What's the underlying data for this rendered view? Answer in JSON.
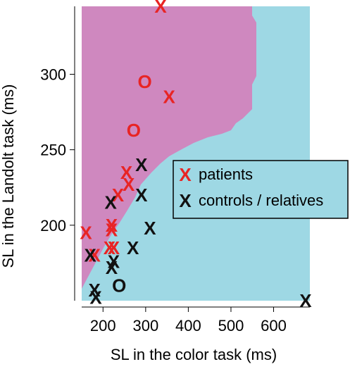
{
  "chart_data": {
    "type": "scatter",
    "xlabel": "SL in the color task (ms)",
    "ylabel": "SL in the Landolt task (ms)",
    "xlim": [
      150,
      685
    ],
    "ylim": [
      150,
      345
    ],
    "xticks": [
      "200",
      "300",
      "400",
      "500",
      "600"
    ],
    "yticks": [
      "200",
      "250",
      "300"
    ],
    "regions": [
      {
        "name": "patients-region",
        "color": "#cf88bf"
      },
      {
        "name": "controls-region",
        "color": "#9ed8e4"
      }
    ],
    "legend": {
      "entries": [
        {
          "symbol": "X",
          "label": "patients",
          "color": "#e82424"
        },
        {
          "symbol": "X",
          "label": "controls / relatives",
          "color": "#111111"
        }
      ]
    },
    "series": [
      {
        "name": "patients",
        "marker": "X",
        "color": "#e82424",
        "points": [
          {
            "x": 335,
            "y": 345
          },
          {
            "x": 355,
            "y": 285
          },
          {
            "x": 160,
            "y": 195
          },
          {
            "x": 180,
            "y": 180
          },
          {
            "x": 215,
            "y": 185
          },
          {
            "x": 220,
            "y": 200
          },
          {
            "x": 220,
            "y": 197
          },
          {
            "x": 225,
            "y": 185
          },
          {
            "x": 235,
            "y": 220
          },
          {
            "x": 255,
            "y": 235
          },
          {
            "x": 260,
            "y": 227
          }
        ]
      },
      {
        "name": "patients-o",
        "marker": "O",
        "color": "#e82424",
        "points": [
          {
            "x": 298,
            "y": 295
          },
          {
            "x": 272,
            "y": 263
          }
        ]
      },
      {
        "name": "controls / relatives",
        "marker": "X",
        "color": "#111111",
        "points": [
          {
            "x": 170,
            "y": 180
          },
          {
            "x": 180,
            "y": 157
          },
          {
            "x": 183,
            "y": 152
          },
          {
            "x": 218,
            "y": 215
          },
          {
            "x": 220,
            "y": 172
          },
          {
            "x": 225,
            "y": 176
          },
          {
            "x": 270,
            "y": 185
          },
          {
            "x": 290,
            "y": 240
          },
          {
            "x": 290,
            "y": 220
          },
          {
            "x": 310,
            "y": 198
          },
          {
            "x": 675,
            "y": 150
          }
        ]
      },
      {
        "name": "controls-o",
        "marker": "O",
        "color": "#111111",
        "points": [
          {
            "x": 238,
            "y": 160
          }
        ]
      }
    ]
  }
}
